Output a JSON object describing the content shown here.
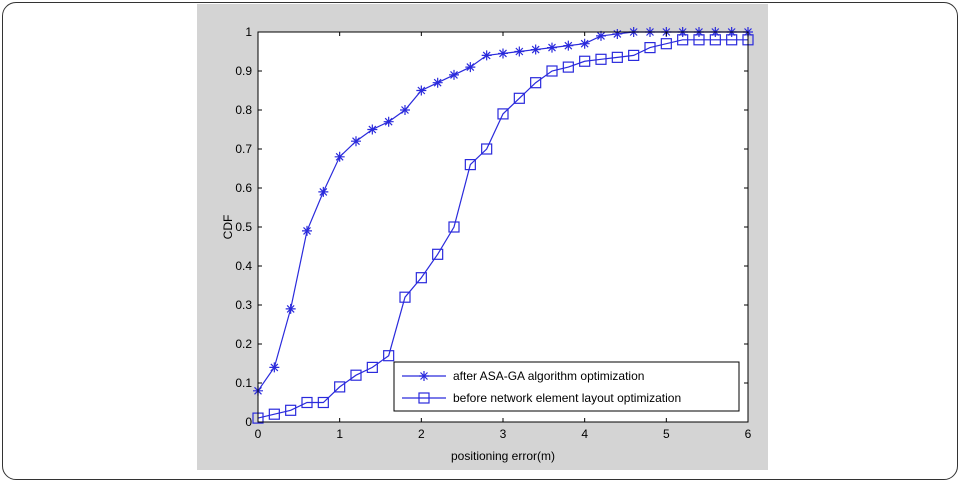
{
  "chart_data": {
    "type": "line",
    "title": "",
    "xlabel": "positioning error(m)",
    "ylabel": "CDF",
    "xlim": [
      0,
      6
    ],
    "ylim": [
      0,
      1
    ],
    "xticks": [
      "0",
      "1",
      "2",
      "3",
      "4",
      "5",
      "6"
    ],
    "yticks": [
      "0",
      "0.1",
      "0.2",
      "0.3",
      "0.4",
      "0.5",
      "0.6",
      "0.7",
      "0.8",
      "0.9",
      "1"
    ],
    "grid": false,
    "legend_position": "bottom-right",
    "line_color": "#2a2adc",
    "series": [
      {
        "name": "after ASA-GA algorithm optimization",
        "marker": "star",
        "x": [
          0,
          0.2,
          0.4,
          0.6,
          0.8,
          1.0,
          1.2,
          1.4,
          1.6,
          1.8,
          2.0,
          2.2,
          2.4,
          2.6,
          2.8,
          3.0,
          3.2,
          3.4,
          3.6,
          3.8,
          4.0,
          4.2,
          4.4,
          4.6,
          4.8,
          5.0,
          5.2,
          5.4,
          5.6,
          5.8,
          6.0
        ],
        "y": [
          0.08,
          0.14,
          0.29,
          0.49,
          0.59,
          0.68,
          0.72,
          0.75,
          0.77,
          0.8,
          0.85,
          0.87,
          0.89,
          0.91,
          0.94,
          0.945,
          0.95,
          0.955,
          0.96,
          0.965,
          0.97,
          0.99,
          0.995,
          1,
          1,
          1,
          1,
          1,
          1,
          1,
          1
        ]
      },
      {
        "name": "before network element layout optimization",
        "marker": "square",
        "x": [
          0,
          0.2,
          0.4,
          0.6,
          0.8,
          1.0,
          1.2,
          1.4,
          1.6,
          1.8,
          2.0,
          2.2,
          2.4,
          2.6,
          2.8,
          3.0,
          3.2,
          3.4,
          3.6,
          3.8,
          4.0,
          4.2,
          4.4,
          4.6,
          4.8,
          5.0,
          5.2,
          5.4,
          5.6,
          5.8,
          6.0
        ],
        "y": [
          0.01,
          0.02,
          0.03,
          0.05,
          0.05,
          0.09,
          0.12,
          0.14,
          0.17,
          0.32,
          0.37,
          0.43,
          0.5,
          0.66,
          0.7,
          0.79,
          0.83,
          0.87,
          0.9,
          0.91,
          0.925,
          0.93,
          0.935,
          0.94,
          0.96,
          0.97,
          0.98,
          0.98,
          0.98,
          0.98,
          0.98
        ]
      }
    ]
  }
}
